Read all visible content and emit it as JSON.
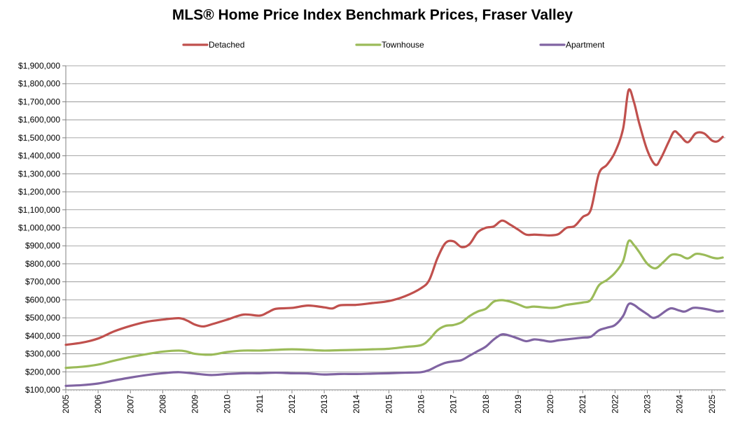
{
  "chart_data": {
    "type": "line",
    "title": "MLS® Home Price Index Benchmark Prices, Fraser Valley",
    "xlabel": "",
    "ylabel": "",
    "x_ticks": [
      "2005",
      "2006",
      "2007",
      "2008",
      "2009",
      "2010",
      "2011",
      "2012",
      "2013",
      "2014",
      "2015",
      "2016",
      "2017",
      "2018",
      "2019",
      "2020",
      "2021",
      "2022",
      "2023",
      "2024",
      "2025"
    ],
    "y_ticks": [
      "$100,000",
      "$200,000",
      "$300,000",
      "$400,000",
      "$500,000",
      "$600,000",
      "$700,000",
      "$800,000",
      "$900,000",
      "$1,000,000",
      "$1,100,000",
      "$1,200,000",
      "$1,300,000",
      "$1,400,000",
      "$1,500,000",
      "$1,600,000",
      "$1,700,000",
      "$1,800,000",
      "$1,900,000"
    ],
    "ylim": [
      100000,
      1900000
    ],
    "xlim": [
      "2005-01",
      "2025-06"
    ],
    "grid": true,
    "legend_position": "top",
    "series": [
      {
        "name": "Detached",
        "color": "#c0504d",
        "points": [
          [
            "2005-01",
            350000
          ],
          [
            "2005-07",
            362000
          ],
          [
            "2006-01",
            385000
          ],
          [
            "2006-07",
            425000
          ],
          [
            "2007-01",
            455000
          ],
          [
            "2007-07",
            478000
          ],
          [
            "2008-01",
            490000
          ],
          [
            "2008-07",
            498000
          ],
          [
            "2008-10",
            485000
          ],
          [
            "2009-01",
            462000
          ],
          [
            "2009-04",
            452000
          ],
          [
            "2009-07",
            463000
          ],
          [
            "2010-01",
            490000
          ],
          [
            "2010-07",
            518000
          ],
          [
            "2011-01",
            512000
          ],
          [
            "2011-04",
            530000
          ],
          [
            "2011-07",
            550000
          ],
          [
            "2012-01",
            555000
          ],
          [
            "2012-07",
            568000
          ],
          [
            "2013-01",
            558000
          ],
          [
            "2013-04",
            552000
          ],
          [
            "2013-07",
            570000
          ],
          [
            "2014-01",
            572000
          ],
          [
            "2014-07",
            582000
          ],
          [
            "2015-01",
            593000
          ],
          [
            "2015-07",
            620000
          ],
          [
            "2016-01",
            665000
          ],
          [
            "2016-04",
            710000
          ],
          [
            "2016-07",
            830000
          ],
          [
            "2016-10",
            915000
          ],
          [
            "2017-01",
            925000
          ],
          [
            "2017-04",
            893000
          ],
          [
            "2017-07",
            910000
          ],
          [
            "2017-10",
            975000
          ],
          [
            "2018-01",
            1000000
          ],
          [
            "2018-04",
            1008000
          ],
          [
            "2018-07",
            1040000
          ],
          [
            "2018-10",
            1018000
          ],
          [
            "2019-01",
            990000
          ],
          [
            "2019-04",
            962000
          ],
          [
            "2019-07",
            962000
          ],
          [
            "2019-10",
            960000
          ],
          [
            "2020-01",
            958000
          ],
          [
            "2020-04",
            965000
          ],
          [
            "2020-07",
            1000000
          ],
          [
            "2020-10",
            1010000
          ],
          [
            "2021-01",
            1060000
          ],
          [
            "2021-04",
            1100000
          ],
          [
            "2021-07",
            1300000
          ],
          [
            "2021-10",
            1350000
          ],
          [
            "2022-01",
            1420000
          ],
          [
            "2022-04",
            1550000
          ],
          [
            "2022-06",
            1763000
          ],
          [
            "2022-08",
            1700000
          ],
          [
            "2022-10",
            1580000
          ],
          [
            "2023-01",
            1430000
          ],
          [
            "2023-04",
            1350000
          ],
          [
            "2023-06",
            1385000
          ],
          [
            "2023-09",
            1480000
          ],
          [
            "2023-11",
            1535000
          ],
          [
            "2024-01",
            1515000
          ],
          [
            "2024-04",
            1475000
          ],
          [
            "2024-07",
            1525000
          ],
          [
            "2024-10",
            1525000
          ],
          [
            "2025-01",
            1485000
          ],
          [
            "2025-03",
            1480000
          ],
          [
            "2025-05",
            1505000
          ]
        ]
      },
      {
        "name": "Townhouse",
        "color": "#9bbb59",
        "points": [
          [
            "2005-01",
            222000
          ],
          [
            "2005-07",
            228000
          ],
          [
            "2006-01",
            240000
          ],
          [
            "2006-07",
            262000
          ],
          [
            "2007-01",
            282000
          ],
          [
            "2007-07",
            298000
          ],
          [
            "2008-01",
            312000
          ],
          [
            "2008-07",
            318000
          ],
          [
            "2008-10",
            312000
          ],
          [
            "2009-01",
            300000
          ],
          [
            "2009-07",
            295000
          ],
          [
            "2010-01",
            310000
          ],
          [
            "2010-07",
            318000
          ],
          [
            "2011-01",
            318000
          ],
          [
            "2011-07",
            322000
          ],
          [
            "2012-01",
            325000
          ],
          [
            "2012-07",
            322000
          ],
          [
            "2013-01",
            318000
          ],
          [
            "2013-07",
            320000
          ],
          [
            "2014-01",
            322000
          ],
          [
            "2014-07",
            325000
          ],
          [
            "2015-01",
            328000
          ],
          [
            "2015-07",
            338000
          ],
          [
            "2016-01",
            348000
          ],
          [
            "2016-04",
            380000
          ],
          [
            "2016-07",
            430000
          ],
          [
            "2016-10",
            455000
          ],
          [
            "2017-01",
            460000
          ],
          [
            "2017-04",
            475000
          ],
          [
            "2017-07",
            510000
          ],
          [
            "2017-10",
            535000
          ],
          [
            "2018-01",
            550000
          ],
          [
            "2018-04",
            590000
          ],
          [
            "2018-07",
            598000
          ],
          [
            "2018-10",
            590000
          ],
          [
            "2019-01",
            575000
          ],
          [
            "2019-04",
            558000
          ],
          [
            "2019-07",
            562000
          ],
          [
            "2020-01",
            555000
          ],
          [
            "2020-04",
            560000
          ],
          [
            "2020-07",
            572000
          ],
          [
            "2021-01",
            585000
          ],
          [
            "2021-04",
            600000
          ],
          [
            "2021-07",
            680000
          ],
          [
            "2021-10",
            710000
          ],
          [
            "2022-01",
            750000
          ],
          [
            "2022-04",
            815000
          ],
          [
            "2022-06",
            925000
          ],
          [
            "2022-08",
            905000
          ],
          [
            "2022-10",
            865000
          ],
          [
            "2023-01",
            800000
          ],
          [
            "2023-04",
            775000
          ],
          [
            "2023-07",
            810000
          ],
          [
            "2023-10",
            850000
          ],
          [
            "2024-01",
            848000
          ],
          [
            "2024-04",
            830000
          ],
          [
            "2024-07",
            855000
          ],
          [
            "2024-10",
            850000
          ],
          [
            "2025-01",
            835000
          ],
          [
            "2025-03",
            830000
          ],
          [
            "2025-05",
            835000
          ]
        ]
      },
      {
        "name": "Apartment",
        "color": "#8064a2",
        "points": [
          [
            "2005-01",
            122000
          ],
          [
            "2005-07",
            126000
          ],
          [
            "2006-01",
            135000
          ],
          [
            "2006-07",
            152000
          ],
          [
            "2007-01",
            168000
          ],
          [
            "2007-07",
            182000
          ],
          [
            "2008-01",
            192000
          ],
          [
            "2008-07",
            198000
          ],
          [
            "2009-01",
            190000
          ],
          [
            "2009-07",
            182000
          ],
          [
            "2010-01",
            188000
          ],
          [
            "2010-07",
            192000
          ],
          [
            "2011-01",
            192000
          ],
          [
            "2011-07",
            195000
          ],
          [
            "2012-01",
            192000
          ],
          [
            "2012-07",
            191000
          ],
          [
            "2013-01",
            185000
          ],
          [
            "2013-07",
            188000
          ],
          [
            "2014-01",
            188000
          ],
          [
            "2014-07",
            190000
          ],
          [
            "2015-01",
            192000
          ],
          [
            "2015-07",
            195000
          ],
          [
            "2016-01",
            198000
          ],
          [
            "2016-04",
            210000
          ],
          [
            "2016-07",
            232000
          ],
          [
            "2016-10",
            250000
          ],
          [
            "2017-01",
            258000
          ],
          [
            "2017-04",
            265000
          ],
          [
            "2017-07",
            290000
          ],
          [
            "2017-10",
            315000
          ],
          [
            "2018-01",
            340000
          ],
          [
            "2018-04",
            380000
          ],
          [
            "2018-07",
            408000
          ],
          [
            "2018-10",
            400000
          ],
          [
            "2019-01",
            385000
          ],
          [
            "2019-04",
            370000
          ],
          [
            "2019-07",
            380000
          ],
          [
            "2019-10",
            375000
          ],
          [
            "2020-01",
            368000
          ],
          [
            "2020-04",
            375000
          ],
          [
            "2020-07",
            380000
          ],
          [
            "2020-10",
            385000
          ],
          [
            "2021-01",
            390000
          ],
          [
            "2021-04",
            395000
          ],
          [
            "2021-07",
            430000
          ],
          [
            "2021-10",
            445000
          ],
          [
            "2022-01",
            460000
          ],
          [
            "2022-04",
            510000
          ],
          [
            "2022-06",
            575000
          ],
          [
            "2022-08",
            572000
          ],
          [
            "2022-10",
            550000
          ],
          [
            "2023-01",
            520000
          ],
          [
            "2023-03",
            500000
          ],
          [
            "2023-05",
            508000
          ],
          [
            "2023-08",
            540000
          ],
          [
            "2023-10",
            553000
          ],
          [
            "2024-01",
            540000
          ],
          [
            "2024-03",
            535000
          ],
          [
            "2024-06",
            555000
          ],
          [
            "2024-09",
            553000
          ],
          [
            "2024-12",
            545000
          ],
          [
            "2025-03",
            535000
          ],
          [
            "2025-05",
            538000
          ]
        ]
      }
    ]
  }
}
